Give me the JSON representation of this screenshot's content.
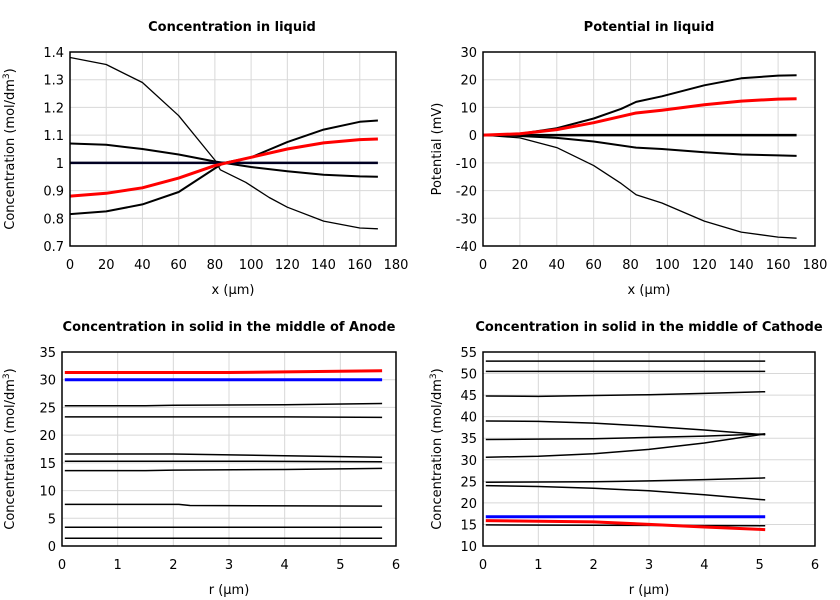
{
  "chart_data": [
    {
      "type": "line",
      "title": "Concentration in liquid",
      "xlabel": "x (µm)",
      "ylabel": "Concentration (mol/dm",
      "ylabel_sup": "3",
      "ylabel_end": ")",
      "xlim": [
        0,
        180
      ],
      "ylim": [
        0.7,
        1.4
      ],
      "xticks": [
        "0",
        "20",
        "40",
        "60",
        "80",
        "100",
        "120",
        "140",
        "160",
        "180"
      ],
      "yticks": [
        "0.7",
        "0.8",
        "0.9",
        "1",
        "1.1",
        "1.2",
        "1.3",
        "1.4"
      ],
      "grid": true,
      "series": [
        {
          "color": "#000000",
          "width": 1.3,
          "points": [
            [
              0,
              1.38
            ],
            [
              20,
              1.355
            ],
            [
              40,
              1.29
            ],
            [
              60,
              1.17
            ],
            [
              80,
              1.01
            ],
            [
              83,
              0.975
            ],
            [
              97,
              0.93
            ],
            [
              110,
              0.875
            ],
            [
              120,
              0.84
            ],
            [
              140,
              0.79
            ],
            [
              160,
              0.765
            ],
            [
              170,
              0.762
            ]
          ]
        },
        {
          "color": "#000000",
          "width": 2,
          "points": [
            [
              0,
              1.07
            ],
            [
              20,
              1.065
            ],
            [
              40,
              1.05
            ],
            [
              60,
              1.03
            ],
            [
              80,
              1.005
            ],
            [
              100,
              0.985
            ],
            [
              120,
              0.97
            ],
            [
              140,
              0.957
            ],
            [
              160,
              0.951
            ],
            [
              170,
              0.95
            ]
          ]
        },
        {
          "color": "#000000",
          "width": 2,
          "points": [
            [
              0,
              0.815
            ],
            [
              20,
              0.825
            ],
            [
              40,
              0.85
            ],
            [
              60,
              0.895
            ],
            [
              80,
              0.98
            ],
            [
              85,
              1.0
            ],
            [
              100,
              1.02
            ],
            [
              120,
              1.075
            ],
            [
              140,
              1.12
            ],
            [
              160,
              1.148
            ],
            [
              170,
              1.153
            ]
          ]
        },
        {
          "color": "#000022",
          "width": 2.5,
          "points": [
            [
              0,
              1.0
            ],
            [
              170,
              1.0
            ]
          ]
        },
        {
          "color": "#ff0000",
          "width": 3,
          "points": [
            [
              0,
              0.88
            ],
            [
              20,
              0.89
            ],
            [
              40,
              0.91
            ],
            [
              60,
              0.945
            ],
            [
              80,
              0.99
            ],
            [
              100,
              1.02
            ],
            [
              120,
              1.05
            ],
            [
              140,
              1.072
            ],
            [
              160,
              1.084
            ],
            [
              170,
              1.086
            ]
          ]
        }
      ]
    },
    {
      "type": "line",
      "title": "Potential in liquid",
      "xlabel": "x (µm)",
      "ylabel": "Potential (mV)",
      "xlim": [
        0,
        180
      ],
      "ylim": [
        -40,
        30
      ],
      "xticks": [
        "0",
        "20",
        "40",
        "60",
        "80",
        "100",
        "120",
        "140",
        "160",
        "180"
      ],
      "yticks": [
        "-40",
        "-30",
        "-20",
        "-10",
        "0",
        "10",
        "20",
        "30"
      ],
      "grid": true,
      "series": [
        {
          "color": "#000000",
          "width": 2,
          "points": [
            [
              0,
              0
            ],
            [
              20,
              0.5
            ],
            [
              40,
              2.5
            ],
            [
              60,
              6
            ],
            [
              75,
              9.5
            ],
            [
              83,
              12
            ],
            [
              97,
              14
            ],
            [
              120,
              18
            ],
            [
              140,
              20.5
            ],
            [
              160,
              21.5
            ],
            [
              170,
              21.6
            ]
          ]
        },
        {
          "color": "#000000",
          "width": 2.5,
          "points": [
            [
              0,
              0
            ],
            [
              170,
              0
            ]
          ]
        },
        {
          "color": "#000000",
          "width": 2,
          "points": [
            [
              0,
              0
            ],
            [
              20,
              -0.3
            ],
            [
              40,
              -1
            ],
            [
              60,
              -2.3
            ],
            [
              83,
              -4.5
            ],
            [
              97,
              -5
            ],
            [
              120,
              -6.2
            ],
            [
              140,
              -7
            ],
            [
              160,
              -7.3
            ],
            [
              170,
              -7.5
            ]
          ]
        },
        {
          "color": "#000000",
          "width": 1.3,
          "points": [
            [
              0,
              0
            ],
            [
              20,
              -1
            ],
            [
              40,
              -4.5
            ],
            [
              60,
              -11
            ],
            [
              75,
              -17.5
            ],
            [
              83,
              -21.5
            ],
            [
              97,
              -24.5
            ],
            [
              120,
              -31
            ],
            [
              140,
              -35
            ],
            [
              160,
              -36.8
            ],
            [
              170,
              -37.2
            ]
          ]
        },
        {
          "color": "#ff0000",
          "width": 3,
          "points": [
            [
              0,
              0
            ],
            [
              20,
              0.5
            ],
            [
              40,
              2
            ],
            [
              60,
              4.5
            ],
            [
              83,
              8
            ],
            [
              97,
              9
            ],
            [
              120,
              11
            ],
            [
              140,
              12.3
            ],
            [
              160,
              13
            ],
            [
              170,
              13.1
            ]
          ]
        }
      ]
    },
    {
      "type": "line",
      "title": "Concentration in solid in the middle of Anode",
      "xlabel": "r (µm)",
      "ylabel": "Concentration (mol/dm",
      "ylabel_sup": "3",
      "ylabel_end": ")",
      "xlim": [
        0,
        6
      ],
      "ylim": [
        0,
        35
      ],
      "xticks": [
        "0",
        "1",
        "2",
        "3",
        "4",
        "5",
        "6"
      ],
      "yticks": [
        "0",
        "5",
        "10",
        "15",
        "20",
        "25",
        "30",
        "35"
      ],
      "grid": true,
      "series": [
        {
          "color": "#000000",
          "width": 1.5,
          "points": [
            [
              0.05,
              25.3
            ],
            [
              1.5,
              25.3
            ],
            [
              2,
              25.4
            ],
            [
              4,
              25.5
            ],
            [
              5.75,
              25.7
            ]
          ]
        },
        {
          "color": "#000000",
          "width": 1.5,
          "points": [
            [
              0.05,
              23.3
            ],
            [
              4,
              23.3
            ],
            [
              5.75,
              23.2
            ]
          ]
        },
        {
          "color": "#000000",
          "width": 1.5,
          "points": [
            [
              0.05,
              16.6
            ],
            [
              2,
              16.6
            ],
            [
              4,
              16.3
            ],
            [
              5.75,
              16.0
            ]
          ]
        },
        {
          "color": "#000000",
          "width": 1.5,
          "points": [
            [
              0.05,
              15.3
            ],
            [
              3,
              15.3
            ],
            [
              5.75,
              15.2
            ]
          ]
        },
        {
          "color": "#000000",
          "width": 1.5,
          "points": [
            [
              0.05,
              13.6
            ],
            [
              1.5,
              13.6
            ],
            [
              2,
              13.7
            ],
            [
              4,
              13.8
            ],
            [
              5.75,
              14.0
            ]
          ]
        },
        {
          "color": "#000000",
          "width": 1.5,
          "points": [
            [
              0.05,
              7.5
            ],
            [
              2.1,
              7.5
            ],
            [
              2.3,
              7.3
            ],
            [
              5.75,
              7.2
            ]
          ]
        },
        {
          "color": "#000000",
          "width": 1.5,
          "points": [
            [
              0.05,
              3.4
            ],
            [
              5.75,
              3.4
            ]
          ]
        },
        {
          "color": "#000000",
          "width": 1.5,
          "points": [
            [
              0.05,
              1.4
            ],
            [
              5.75,
              1.4
            ]
          ]
        },
        {
          "color": "#0000ff",
          "width": 3,
          "points": [
            [
              0.05,
              30.0
            ],
            [
              5.75,
              30.0
            ]
          ]
        },
        {
          "color": "#ff0000",
          "width": 3,
          "points": [
            [
              0.05,
              31.3
            ],
            [
              3,
              31.3
            ],
            [
              5.75,
              31.6
            ]
          ]
        }
      ]
    },
    {
      "type": "line",
      "title": "Concentration in solid in the middle of Cathode",
      "xlabel": "r (µm)",
      "ylabel": "Concentration (mol/dm",
      "ylabel_sup": "3",
      "ylabel_end": ")",
      "xlim": [
        0,
        6
      ],
      "ylim": [
        10,
        55
      ],
      "xticks": [
        "0",
        "1",
        "2",
        "3",
        "4",
        "5",
        "6"
      ],
      "yticks": [
        "10",
        "15",
        "20",
        "25",
        "30",
        "35",
        "40",
        "45",
        "50",
        "55"
      ],
      "grid": true,
      "series": [
        {
          "color": "#000000",
          "width": 1.5,
          "points": [
            [
              0.05,
              52.9
            ],
            [
              5.1,
              52.9
            ]
          ]
        },
        {
          "color": "#000000",
          "width": 1.5,
          "points": [
            [
              0.05,
              50.5
            ],
            [
              5.1,
              50.5
            ]
          ]
        },
        {
          "color": "#000000",
          "width": 1.5,
          "points": [
            [
              0.05,
              44.8
            ],
            [
              1,
              44.7
            ],
            [
              2,
              44.9
            ],
            [
              3,
              45.1
            ],
            [
              4,
              45.4
            ],
            [
              5.1,
              45.8
            ]
          ]
        },
        {
          "color": "#000000",
          "width": 1.5,
          "points": [
            [
              0.05,
              39.0
            ],
            [
              1,
              38.9
            ],
            [
              2,
              38.5
            ],
            [
              3,
              37.8
            ],
            [
              4,
              36.9
            ],
            [
              5.1,
              35.8
            ]
          ]
        },
        {
          "color": "#000000",
          "width": 1.5,
          "points": [
            [
              0.05,
              34.7
            ],
            [
              1,
              34.8
            ],
            [
              2,
              34.9
            ],
            [
              3,
              35.2
            ],
            [
              4,
              35.5
            ],
            [
              5.1,
              36.0
            ]
          ]
        },
        {
          "color": "#000000",
          "width": 1.5,
          "points": [
            [
              0.05,
              30.6
            ],
            [
              1,
              30.8
            ],
            [
              2,
              31.4
            ],
            [
              3,
              32.4
            ],
            [
              4,
              33.9
            ],
            [
              5.1,
              36.0
            ]
          ]
        },
        {
          "color": "#000000",
          "width": 1.5,
          "points": [
            [
              0.05,
              24.8
            ],
            [
              2,
              24.9
            ],
            [
              3,
              25.1
            ],
            [
              4,
              25.4
            ],
            [
              5.1,
              25.8
            ]
          ]
        },
        {
          "color": "#000000",
          "width": 1.5,
          "points": [
            [
              0.05,
              24.0
            ],
            [
              1,
              23.8
            ],
            [
              2,
              23.4
            ],
            [
              3,
              22.8
            ],
            [
              4,
              21.9
            ],
            [
              5.1,
              20.7
            ]
          ]
        },
        {
          "color": "#000000",
          "width": 1.5,
          "points": [
            [
              0.05,
              14.9
            ],
            [
              5.1,
              14.7
            ]
          ]
        },
        {
          "color": "#0000ff",
          "width": 3,
          "points": [
            [
              0.05,
              16.8
            ],
            [
              5.1,
              16.8
            ]
          ]
        },
        {
          "color": "#ff0000",
          "width": 3,
          "points": [
            [
              0.05,
              15.9
            ],
            [
              2,
              15.6
            ],
            [
              3,
              15.0
            ],
            [
              4,
              14.4
            ],
            [
              5.1,
              13.8
            ]
          ]
        }
      ]
    }
  ]
}
